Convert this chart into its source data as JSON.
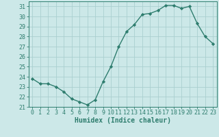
{
  "x": [
    0,
    1,
    2,
    3,
    4,
    5,
    6,
    7,
    8,
    9,
    10,
    11,
    12,
    13,
    14,
    15,
    16,
    17,
    18,
    19,
    20,
    21,
    22,
    23
  ],
  "y": [
    23.8,
    23.3,
    23.3,
    23.0,
    22.5,
    21.8,
    21.5,
    21.2,
    21.7,
    23.5,
    25.0,
    27.0,
    28.5,
    29.2,
    30.2,
    30.3,
    30.6,
    31.1,
    31.1,
    30.8,
    31.0,
    29.3,
    28.0,
    27.3
  ],
  "xlabel": "Humidex (Indice chaleur)",
  "line_color": "#2e7d6e",
  "marker": "D",
  "marker_size": 2.2,
  "bg_color": "#cce8e8",
  "grid_color": "#aacfcf",
  "ylim": [
    21,
    31.5
  ],
  "xlim": [
    -0.5,
    23.5
  ],
  "yticks": [
    21,
    22,
    23,
    24,
    25,
    26,
    27,
    28,
    29,
    30,
    31
  ],
  "xticks": [
    0,
    1,
    2,
    3,
    4,
    5,
    6,
    7,
    8,
    9,
    10,
    11,
    12,
    13,
    14,
    15,
    16,
    17,
    18,
    19,
    20,
    21,
    22,
    23
  ],
  "tick_color": "#2e7d6e",
  "label_fontsize": 7,
  "tick_fontsize": 6,
  "linewidth": 1.0
}
